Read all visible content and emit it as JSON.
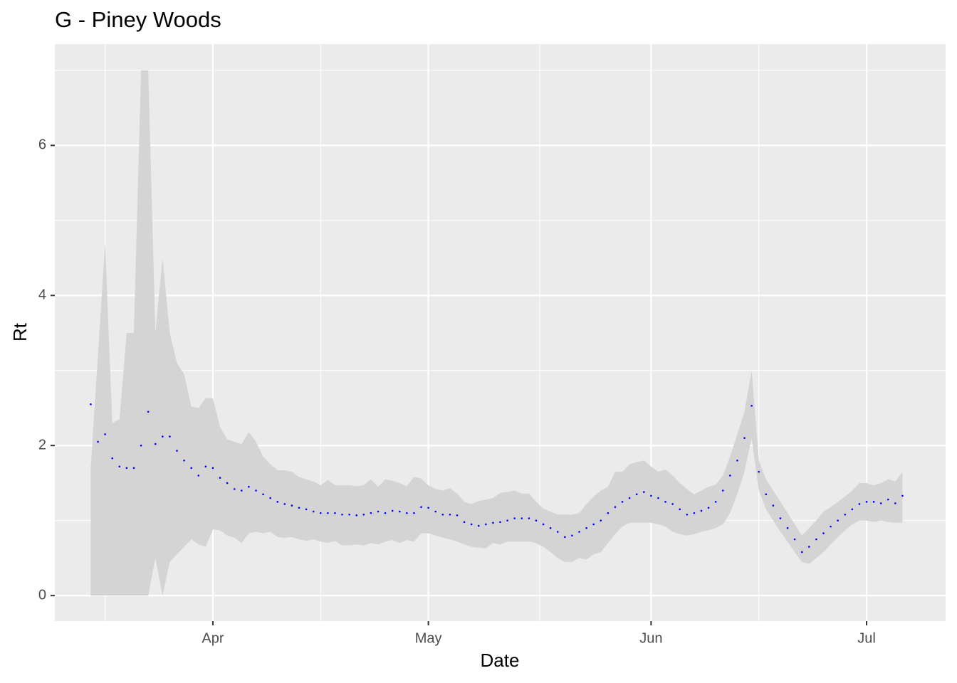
{
  "chart_data": {
    "type": "ribbon-points",
    "title": "G - Piney Woods",
    "x_label": "Date",
    "y_label": "Rt",
    "x": [
      "03-15",
      "03-16",
      "03-17",
      "03-18",
      "03-19",
      "03-20",
      "03-21",
      "03-22",
      "03-23",
      "03-24",
      "03-25",
      "03-26",
      "03-27",
      "03-28",
      "03-29",
      "03-30",
      "03-31",
      "04-01",
      "04-02",
      "04-03",
      "04-04",
      "04-05",
      "04-06",
      "04-07",
      "04-08",
      "04-09",
      "04-10",
      "04-11",
      "04-12",
      "04-13",
      "04-14",
      "04-15",
      "04-16",
      "04-17",
      "04-18",
      "04-19",
      "04-20",
      "04-21",
      "04-22",
      "04-23",
      "04-24",
      "04-25",
      "04-26",
      "04-27",
      "04-28",
      "04-29",
      "04-30",
      "05-01",
      "05-02",
      "05-03",
      "05-04",
      "05-05",
      "05-06",
      "05-07",
      "05-08",
      "05-09",
      "05-10",
      "05-11",
      "05-12",
      "05-13",
      "05-14",
      "05-15",
      "05-16",
      "05-17",
      "05-18",
      "05-19",
      "05-20",
      "05-21",
      "05-22",
      "05-23",
      "05-24",
      "05-25",
      "05-26",
      "05-27",
      "05-28",
      "05-29",
      "05-30",
      "05-31",
      "06-01",
      "06-02",
      "06-03",
      "06-04",
      "06-05",
      "06-06",
      "06-07",
      "06-08",
      "06-09",
      "06-10",
      "06-11",
      "06-12",
      "06-13",
      "06-14",
      "06-15",
      "06-16",
      "06-17",
      "06-18",
      "06-19",
      "06-20",
      "06-21",
      "06-22",
      "06-23",
      "06-24",
      "06-25",
      "06-26",
      "06-27",
      "06-28",
      "06-29",
      "06-30",
      "07-01",
      "07-02",
      "07-03",
      "07-04",
      "07-05",
      "07-06"
    ],
    "values": [
      2.55,
      2.05,
      2.15,
      1.83,
      1.72,
      1.7,
      1.7,
      2.0,
      2.45,
      2.02,
      2.12,
      2.12,
      1.93,
      1.8,
      1.7,
      1.6,
      1.72,
      1.7,
      1.57,
      1.5,
      1.42,
      1.4,
      1.45,
      1.4,
      1.35,
      1.3,
      1.25,
      1.22,
      1.2,
      1.17,
      1.15,
      1.12,
      1.1,
      1.1,
      1.1,
      1.08,
      1.08,
      1.07,
      1.08,
      1.1,
      1.12,
      1.1,
      1.13,
      1.12,
      1.1,
      1.1,
      1.18,
      1.17,
      1.12,
      1.08,
      1.08,
      1.07,
      0.98,
      0.95,
      0.93,
      0.95,
      0.97,
      0.98,
      1.0,
      1.03,
      1.03,
      1.03,
      1.0,
      0.95,
      0.9,
      0.85,
      0.78,
      0.8,
      0.85,
      0.9,
      0.95,
      1.0,
      1.1,
      1.18,
      1.25,
      1.3,
      1.35,
      1.38,
      1.33,
      1.3,
      1.25,
      1.22,
      1.15,
      1.08,
      1.1,
      1.13,
      1.17,
      1.25,
      1.4,
      1.6,
      1.8,
      2.1,
      2.53,
      1.65,
      1.35,
      1.2,
      1.03,
      0.9,
      0.75,
      0.58,
      0.65,
      0.75,
      0.83,
      0.92,
      1.0,
      1.08,
      1.15,
      1.22,
      1.25,
      1.25,
      1.23,
      1.28,
      1.23,
      1.33
    ],
    "lower": [
      0,
      0,
      0,
      0,
      0,
      0,
      0,
      0,
      0,
      0.5,
      0,
      0.45,
      0.55,
      0.65,
      0.75,
      0.68,
      0.65,
      0.88,
      0.87,
      0.8,
      0.77,
      0.7,
      0.83,
      0.85,
      0.83,
      0.85,
      0.78,
      0.77,
      0.78,
      0.75,
      0.73,
      0.75,
      0.72,
      0.7,
      0.73,
      0.67,
      0.67,
      0.68,
      0.67,
      0.7,
      0.68,
      0.72,
      0.74,
      0.7,
      0.74,
      0.72,
      0.83,
      0.83,
      0.8,
      0.77,
      0.75,
      0.72,
      0.68,
      0.65,
      0.64,
      0.63,
      0.7,
      0.68,
      0.72,
      0.72,
      0.72,
      0.72,
      0.7,
      0.65,
      0.58,
      0.5,
      0.45,
      0.45,
      0.5,
      0.48,
      0.55,
      0.58,
      0.7,
      0.82,
      0.92,
      0.97,
      0.97,
      0.97,
      0.97,
      0.95,
      0.92,
      0.85,
      0.82,
      0.8,
      0.82,
      0.85,
      0.87,
      0.9,
      0.95,
      1.1,
      1.35,
      1.65,
      2.1,
      1.4,
      1.15,
      1.0,
      0.85,
      0.72,
      0.58,
      0.45,
      0.42,
      0.5,
      0.58,
      0.68,
      0.78,
      0.87,
      0.95,
      1.0,
      1.0,
      0.98,
      1.0,
      0.98,
      0.97,
      0.97
    ],
    "upper": [
      1.7,
      3.2,
      4.7,
      2.3,
      2.35,
      3.5,
      3.5,
      7.0,
      7.0,
      3.5,
      4.5,
      3.5,
      3.1,
      2.95,
      2.52,
      2.5,
      2.63,
      2.63,
      2.25,
      2.08,
      2.05,
      2.02,
      2.18,
      2.05,
      1.85,
      1.75,
      1.67,
      1.67,
      1.65,
      1.58,
      1.55,
      1.52,
      1.47,
      1.54,
      1.47,
      1.47,
      1.47,
      1.46,
      1.47,
      1.55,
      1.45,
      1.55,
      1.53,
      1.5,
      1.46,
      1.58,
      1.56,
      1.47,
      1.42,
      1.4,
      1.43,
      1.36,
      1.25,
      1.22,
      1.26,
      1.28,
      1.3,
      1.37,
      1.38,
      1.4,
      1.36,
      1.36,
      1.25,
      1.16,
      1.12,
      1.08,
      1.08,
      1.08,
      1.1,
      1.22,
      1.32,
      1.4,
      1.45,
      1.65,
      1.65,
      1.75,
      1.78,
      1.8,
      1.72,
      1.65,
      1.68,
      1.6,
      1.5,
      1.42,
      1.35,
      1.4,
      1.45,
      1.48,
      1.6,
      1.85,
      2.15,
      2.45,
      3.0,
      1.8,
      1.55,
      1.4,
      1.25,
      1.1,
      0.95,
      0.8,
      0.9,
      1.0,
      1.12,
      1.18,
      1.25,
      1.32,
      1.4,
      1.5,
      1.5,
      1.47,
      1.5,
      1.55,
      1.52,
      1.65
    ],
    "point_color": "#0000ff",
    "ribbon_color": "#d4d4d4",
    "xlim": [
      "03-10",
      "07-12"
    ],
    "xticks": [
      {
        "value": "04-01",
        "label": "Apr"
      },
      {
        "value": "05-01",
        "label": "May"
      },
      {
        "value": "06-01",
        "label": "Jun"
      },
      {
        "value": "07-01",
        "label": "Jul"
      }
    ],
    "ylim": [
      -0.34,
      7.35
    ],
    "yticks": [
      0,
      2,
      4,
      6
    ],
    "grid": true
  }
}
